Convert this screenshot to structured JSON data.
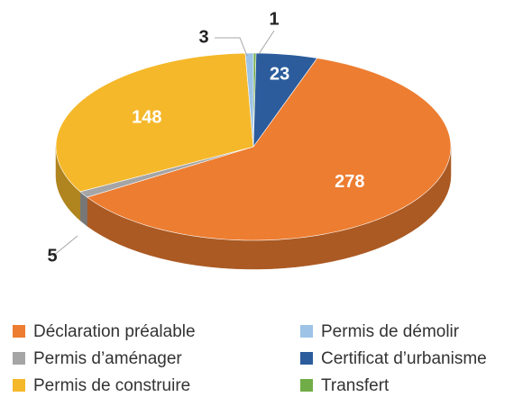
{
  "chart_data": {
    "type": "pie",
    "categories": [
      "Déclaration préalable",
      "Permis d’aménager",
      "Permis de construire",
      "Permis de démolir",
      "Certificat d’urbanisme",
      "Transfert"
    ],
    "values": [
      278,
      5,
      148,
      3,
      23,
      1
    ],
    "colors": [
      "#ED7D31",
      "#A5A5A5",
      "#F5B82A",
      "#9DC3E6",
      "#2C5C9C",
      "#70AD47"
    ],
    "legend": "bottom"
  }
}
